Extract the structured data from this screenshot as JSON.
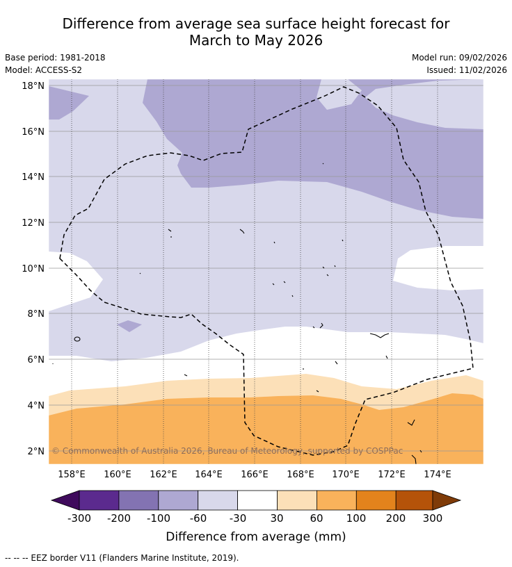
{
  "title": {
    "line1": "Difference from average sea surface height forecast for",
    "line2": "March to May 2026"
  },
  "metadata": {
    "base_period": "Base period: 1981-2018",
    "model": "Model: ACCESS-S2",
    "model_run": "Model run: 09/02/2026",
    "issued": "Issued: 11/02/2026"
  },
  "map": {
    "longitude_labels": [
      "158°E",
      "160°E",
      "162°E",
      "164°E",
      "166°E",
      "168°E",
      "170°E",
      "172°E",
      "174°E"
    ],
    "latitude_labels": [
      "18°N",
      "16°N",
      "14°N",
      "12°N",
      "10°N",
      "8°N",
      "6°N",
      "4°N",
      "2°N"
    ],
    "copyright": "© Commonwealth of Australia 2026, Bureau of Meteorology, supported by COSPPac"
  },
  "legend": {
    "title": "Difference from average (mm)",
    "tick_labels": [
      "-300",
      "-200",
      "-100",
      "-60",
      "-30",
      "30",
      "60",
      "100",
      "200",
      "300"
    ],
    "colors": [
      "#3f0b5c",
      "#5b2a8e",
      "#8373b2",
      "#aea8d2",
      "#d8d8eb",
      "#ffffff",
      "#fce0b8",
      "#f9b25b",
      "#e3831c",
      "#b55309",
      "#7f3b08"
    ]
  },
  "footnote": "--  --  -- EEZ border V11 (Flanders Marine Institute, 2019)."
}
